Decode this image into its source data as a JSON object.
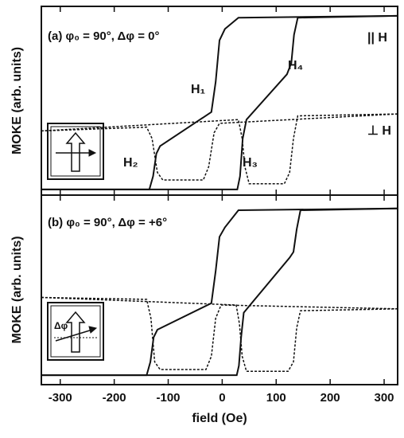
{
  "chart_data": [
    {
      "type": "line",
      "ylabel": "MOKE (arb. units)",
      "annotations": [
        "(a) φ₀ = 90°, Δφ = 0°",
        "|| H",
        "⊥ H",
        "H₁",
        "H₂",
        "H₃",
        "H₄"
      ],
      "xlim": [
        -335,
        325
      ],
      "xticks": [
        -300,
        -200,
        -100,
        0,
        100,
        200,
        300
      ],
      "ylim": [
        0,
        1
      ],
      "series": [
        {
          "color": "#111111",
          "linestyle": "solid",
          "x": [
            -335,
            -135,
            -128,
            -122,
            -115,
            -20,
            -12,
            -5,
            5,
            30,
            325
          ],
          "values": [
            0.03,
            0.03,
            0.1,
            0.22,
            0.26,
            0.44,
            0.6,
            0.82,
            0.88,
            0.94,
            0.95
          ]
        },
        {
          "color": "#111111",
          "linestyle": "solid",
          "x": [
            325,
            140,
            133,
            128,
            120,
            45,
            38,
            33,
            28,
            -335
          ],
          "values": [
            0.95,
            0.94,
            0.85,
            0.7,
            0.64,
            0.4,
            0.3,
            0.1,
            0.03,
            0.03
          ]
        },
        {
          "color": "#111111",
          "linestyle": "dashed",
          "x": [
            -335,
            -140,
            -130,
            -120,
            -110,
            -35,
            -25,
            -15,
            -5,
            325
          ],
          "values": [
            0.34,
            0.36,
            0.3,
            0.12,
            0.08,
            0.08,
            0.15,
            0.33,
            0.38,
            0.43
          ]
        },
        {
          "color": "#111111",
          "linestyle": "dashed",
          "x": [
            325,
            140,
            132,
            125,
            115,
            50,
            42,
            37,
            30,
            -335
          ],
          "values": [
            0.43,
            0.42,
            0.3,
            0.12,
            0.06,
            0.06,
            0.15,
            0.3,
            0.4,
            0.34
          ]
        }
      ]
    },
    {
      "type": "line",
      "ylabel": "MOKE (arb. units)",
      "xlabel": "field (Oe)",
      "annotations": [
        "(b) φ₀ = 90°, Δφ = +6°",
        "Δφ"
      ],
      "xlim": [
        -335,
        325
      ],
      "xticks": [
        -300,
        -200,
        -100,
        0,
        100,
        200,
        300
      ],
      "ylim": [
        0,
        1
      ],
      "series": [
        {
          "color": "#111111",
          "linestyle": "solid",
          "x": [
            -335,
            -140,
            -133,
            -127,
            -120,
            -20,
            -12,
            -5,
            5,
            30,
            325
          ],
          "values": [
            0.05,
            0.05,
            0.12,
            0.25,
            0.29,
            0.43,
            0.6,
            0.78,
            0.83,
            0.92,
            0.93
          ]
        },
        {
          "color": "#111111",
          "linestyle": "solid",
          "x": [
            325,
            145,
            138,
            132,
            125,
            40,
            35,
            31,
            27,
            -335
          ],
          "values": [
            0.93,
            0.92,
            0.82,
            0.7,
            0.67,
            0.38,
            0.25,
            0.1,
            0.05,
            0.05
          ]
        },
        {
          "color": "#111111",
          "linestyle": "dashed",
          "x": [
            -335,
            -140,
            -132,
            -125,
            -115,
            -30,
            -20,
            -12,
            -2,
            325
          ],
          "values": [
            0.46,
            0.45,
            0.35,
            0.12,
            0.08,
            0.08,
            0.15,
            0.35,
            0.42,
            0.4
          ]
        },
        {
          "color": "#111111",
          "linestyle": "dashed",
          "x": [
            325,
            145,
            138,
            132,
            122,
            45,
            37,
            32,
            26,
            -335
          ],
          "values": [
            0.4,
            0.39,
            0.3,
            0.12,
            0.07,
            0.07,
            0.15,
            0.32,
            0.42,
            0.46
          ]
        }
      ]
    }
  ]
}
